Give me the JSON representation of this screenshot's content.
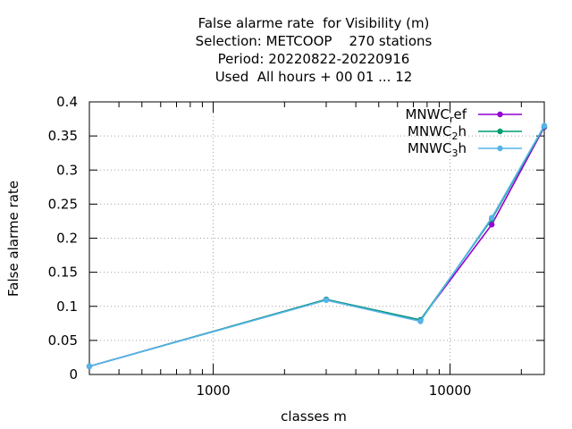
{
  "chart_data": {
    "type": "line",
    "title_lines": [
      "False alarme rate  for Visibility (m)",
      "Selection: METCOOP    270 stations",
      "Period: 20220822-20220916",
      "Used  All hours + 00 01 ... 12"
    ],
    "xlabel": "classes m",
    "ylabel": "False alarme rate",
    "xscale": "log",
    "xlim": [
      300,
      25000
    ],
    "ylim": [
      0,
      0.4
    ],
    "x_ticks": [
      {
        "value": 1000,
        "label": "1000"
      },
      {
        "value": 10000,
        "label": "10000"
      }
    ],
    "y_ticks": [
      {
        "value": 0,
        "label": "0"
      },
      {
        "value": 0.05,
        "label": "0.05"
      },
      {
        "value": 0.1,
        "label": "0.1"
      },
      {
        "value": 0.15,
        "label": "0.15"
      },
      {
        "value": 0.2,
        "label": "0.2"
      },
      {
        "value": 0.25,
        "label": "0.25"
      },
      {
        "value": 0.3,
        "label": "0.3"
      },
      {
        "value": 0.35,
        "label": "0.35"
      },
      {
        "value": 0.4,
        "label": "0.4"
      }
    ],
    "grid": true,
    "legend_position": "top-right",
    "x": [
      300,
      3000,
      7500,
      15000,
      25000
    ],
    "series": [
      {
        "name": "MNWC",
        "name_sub": "r",
        "name_tail": "ef",
        "color": "#9400d3",
        "values": [
          0.012,
          0.11,
          0.08,
          0.22,
          0.363
        ]
      },
      {
        "name": "MNWC",
        "name_sub": "2",
        "name_tail": "h",
        "color": "#009e73",
        "values": [
          0.012,
          0.11,
          0.08,
          0.228,
          0.364
        ]
      },
      {
        "name": "MNWC",
        "name_sub": "3",
        "name_tail": "h",
        "color": "#56b4e9",
        "values": [
          0.012,
          0.109,
          0.078,
          0.23,
          0.365
        ]
      }
    ]
  }
}
